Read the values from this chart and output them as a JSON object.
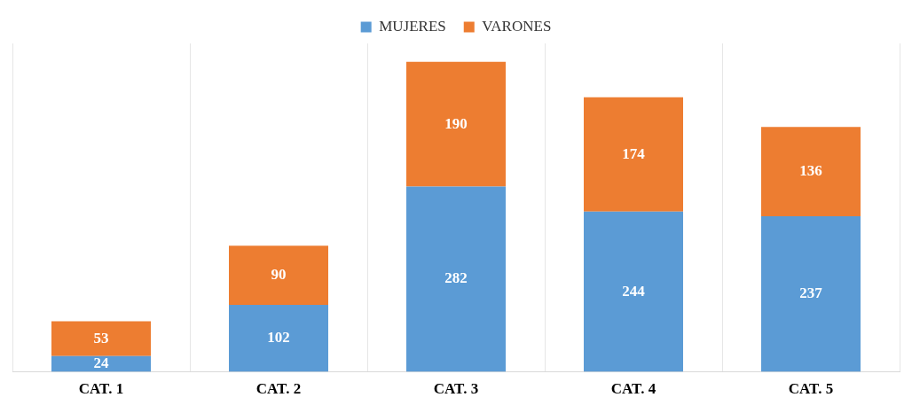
{
  "chart_data": {
    "type": "bar",
    "stacked": true,
    "categories": [
      "CAT. 1",
      "CAT. 2",
      "CAT. 3",
      "CAT. 4",
      "CAT. 5"
    ],
    "series": [
      {
        "name": "MUJERES",
        "color": "#5b9bd5",
        "values": [
          24,
          102,
          282,
          244,
          237
        ]
      },
      {
        "name": "VARONES",
        "color": "#ed7d31",
        "values": [
          53,
          90,
          190,
          174,
          136
        ]
      }
    ],
    "data_labels": true,
    "legend": "top",
    "grid": "x",
    "tick_labels": "x"
  }
}
